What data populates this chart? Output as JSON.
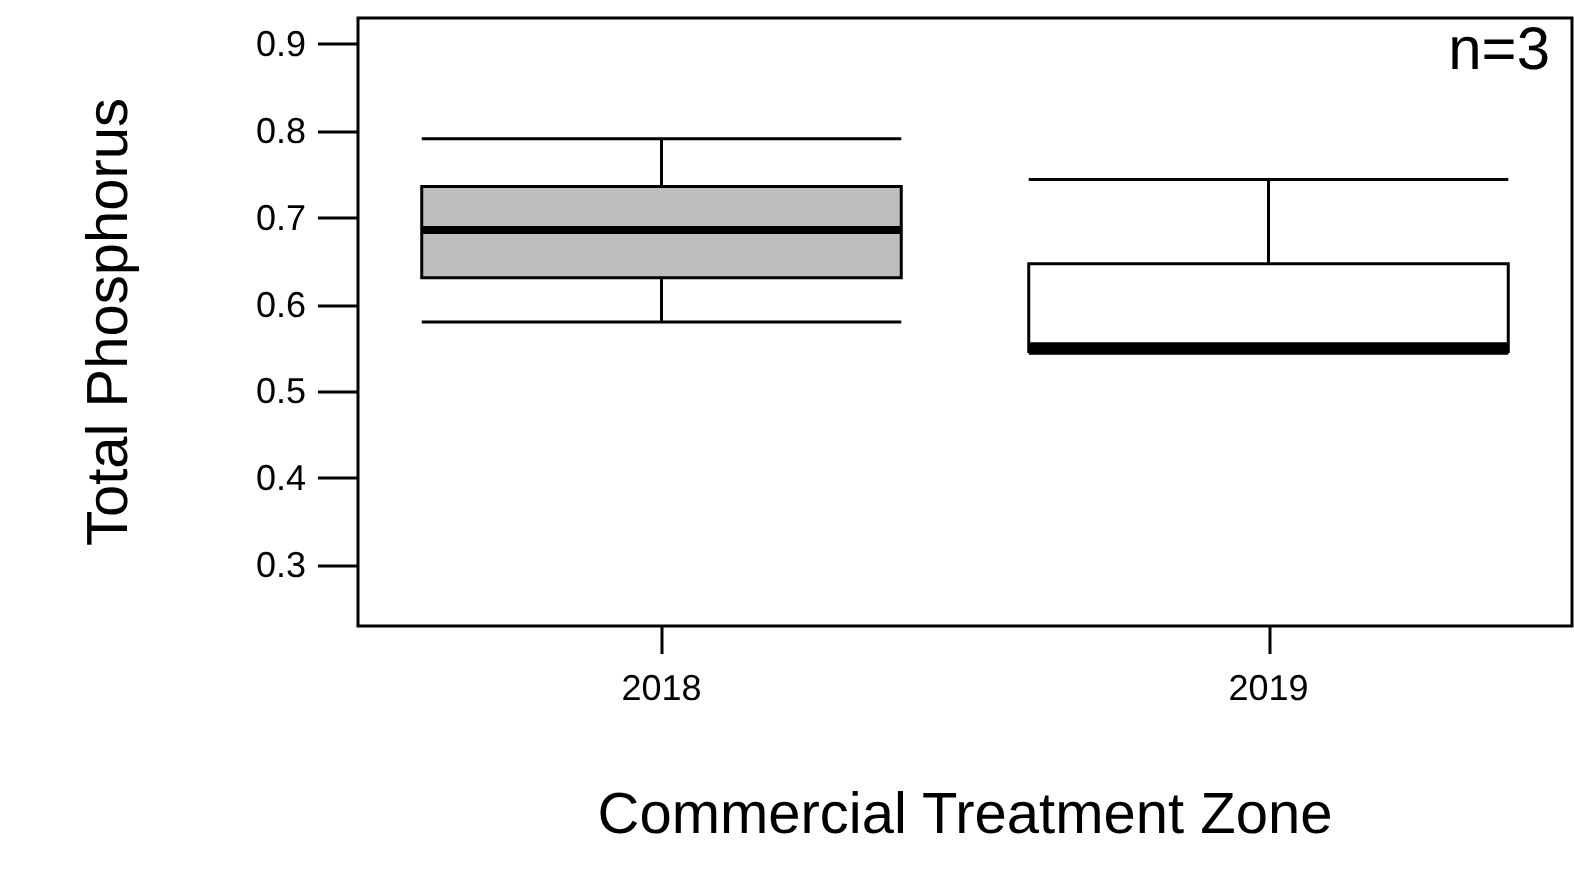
{
  "chart_data": {
    "type": "box",
    "categories": [
      "2018",
      "2019"
    ],
    "xlabel": "Commercial Treatment Zone",
    "ylabel": "Total Phosphorus",
    "ylim": [
      0.23,
      0.93
    ],
    "yticks": [
      0.3,
      0.4,
      0.5,
      0.6,
      0.7,
      0.8,
      0.9
    ],
    "grid": false,
    "annotations": [
      "n=3"
    ],
    "series": [
      {
        "colors": [
          "#bebebe",
          "#ffffff"
        ],
        "boxes": [
          {
            "low": 0.58,
            "q1": 0.631,
            "median": 0.686,
            "q3": 0.736,
            "high": 0.791
          },
          {
            "low": 0.544,
            "q1": 0.546,
            "median": 0.552,
            "q3": 0.647,
            "high": 0.744
          }
        ]
      }
    ]
  }
}
